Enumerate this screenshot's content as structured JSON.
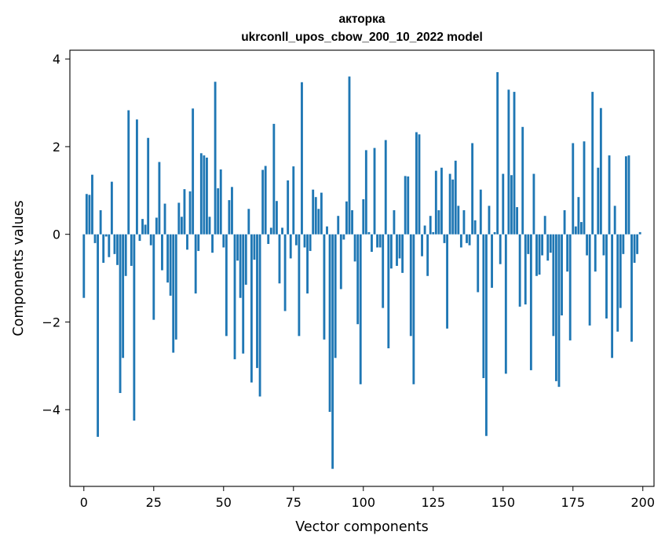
{
  "chart_data": {
    "type": "bar",
    "title": "акторка",
    "subtitle": "ukrconll_upos_cbow_200_10_2022 model",
    "xlabel": "Vector components",
    "ylabel": "Components values",
    "xlim": [
      -5,
      204
    ],
    "ylim": [
      -5.75,
      4.2
    ],
    "xticks": [
      0,
      25,
      50,
      75,
      100,
      125,
      150,
      175,
      200
    ],
    "yticks": [
      -4,
      -2,
      0,
      2,
      4
    ],
    "grid": false,
    "bar_color": "#1f77b4",
    "values": [
      -1.45,
      0.92,
      0.9,
      1.36,
      -0.2,
      -4.62,
      0.55,
      -0.65,
      -0.05,
      -0.52,
      1.2,
      -0.45,
      -0.7,
      -3.62,
      -2.82,
      -0.95,
      2.83,
      -0.72,
      -4.25,
      2.62,
      -0.15,
      0.35,
      0.22,
      2.2,
      -0.25,
      -1.95,
      0.38,
      1.65,
      -0.82,
      0.7,
      -1.1,
      -1.4,
      -2.7,
      -2.4,
      0.72,
      0.4,
      1.03,
      -0.35,
      0.98,
      2.87,
      -1.35,
      -0.38,
      1.85,
      1.8,
      1.75,
      0.4,
      -0.42,
      3.48,
      1.05,
      1.48,
      -0.3,
      -2.32,
      0.78,
      1.08,
      -2.85,
      -0.6,
      -1.45,
      -2.72,
      -1.15,
      0.58,
      -3.38,
      -0.58,
      -3.05,
      -3.7,
      1.47,
      1.56,
      -0.22,
      0.15,
      2.52,
      0.76,
      -1.12,
      0.15,
      -1.75,
      1.23,
      -0.55,
      1.55,
      -0.25,
      -2.32,
      3.47,
      -0.3,
      -1.35,
      -0.38,
      1.02,
      0.85,
      0.58,
      0.95,
      -2.4,
      0.18,
      -4.05,
      -5.35,
      -2.82,
      0.42,
      -1.25,
      -0.12,
      0.75,
      3.6,
      0.55,
      -0.62,
      -2.05,
      -3.42,
      0.8,
      1.92,
      0.05,
      -0.4,
      1.97,
      -0.3,
      -0.3,
      -1.68,
      2.15,
      -2.6,
      -0.78,
      0.55,
      -0.72,
      -0.55,
      -0.88,
      1.33,
      1.32,
      -2.32,
      -3.42,
      2.33,
      2.28,
      -0.5,
      0.2,
      -0.95,
      0.42,
      0.05,
      1.45,
      0.55,
      1.52,
      -0.2,
      -2.15,
      1.38,
      1.25,
      1.68,
      0.65,
      -0.3,
      0.55,
      -0.2,
      -0.25,
      2.08,
      0.32,
      -1.32,
      1.02,
      -3.28,
      -4.6,
      0.65,
      -1.22,
      0.05,
      3.7,
      -0.68,
      1.38,
      -3.18,
      3.3,
      1.35,
      3.25,
      0.62,
      -1.65,
      2.45,
      -1.6,
      -0.45,
      -3.1,
      1.38,
      -0.95,
      -0.92,
      -0.48,
      0.42,
      -0.6,
      -0.42,
      -2.32,
      -3.35,
      -3.48,
      -1.85,
      0.55,
      -0.85,
      -2.42,
      2.08,
      0.18,
      0.85,
      0.28,
      2.12,
      -0.48,
      -2.08,
      3.25,
      -0.85,
      1.52,
      2.88,
      -0.48,
      -1.92,
      1.8,
      -2.82,
      0.65,
      -2.22,
      -1.68,
      -0.45,
      1.78,
      1.8,
      -2.45,
      -0.65,
      -0.45,
      0.05
    ]
  }
}
